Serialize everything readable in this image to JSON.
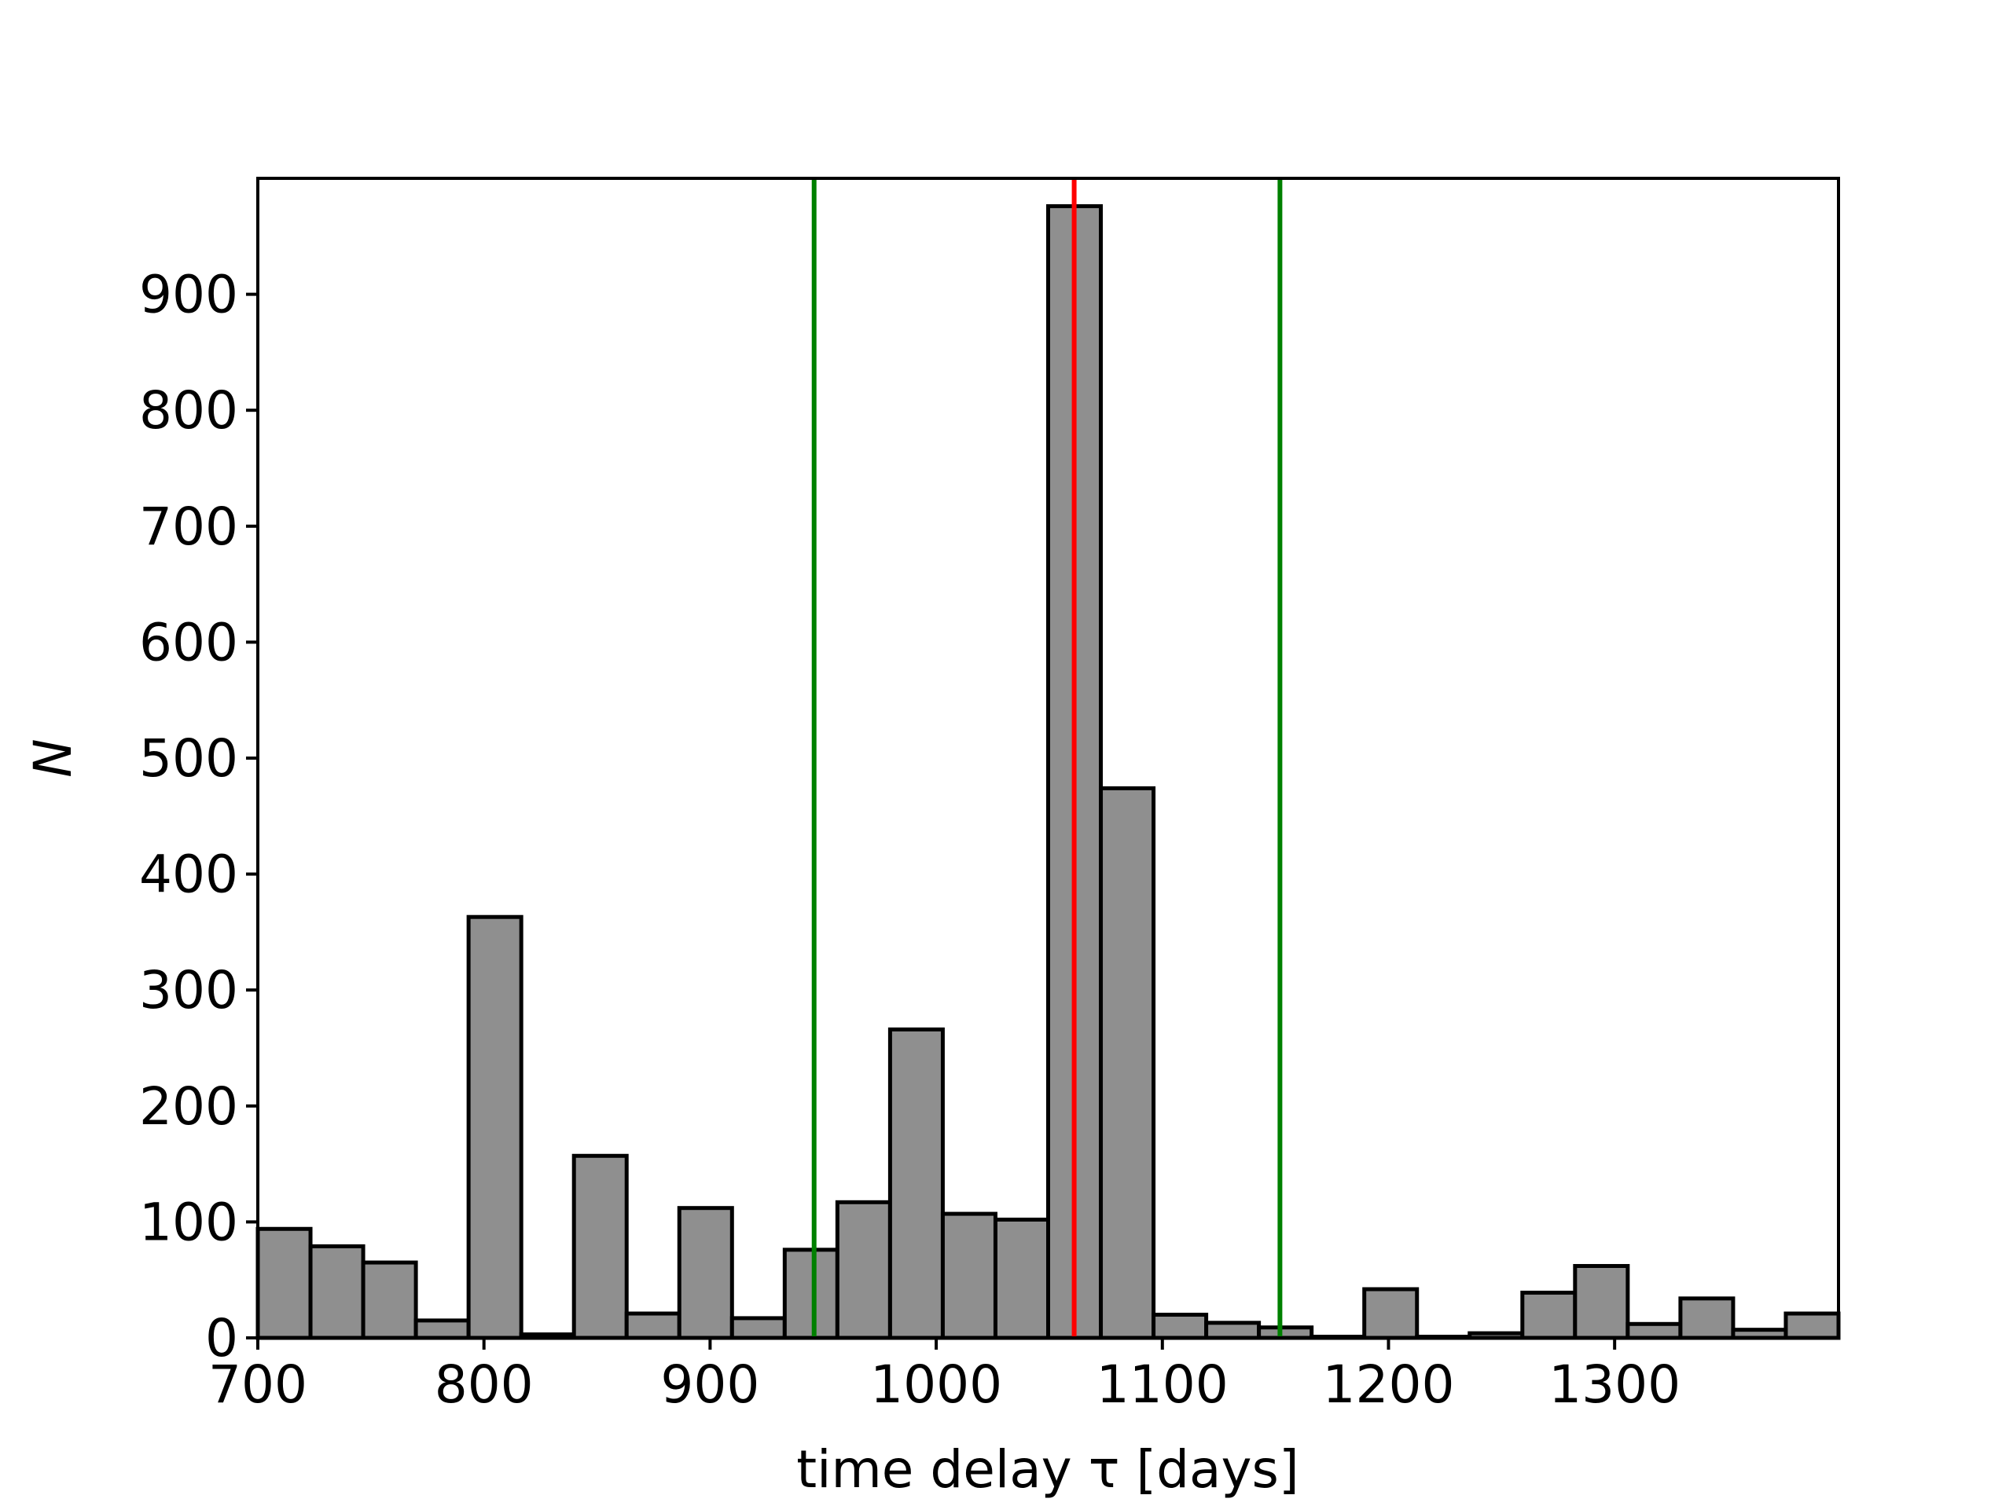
{
  "chart_data": {
    "type": "histogram",
    "xlabel": "time delay  τ [days]",
    "ylabel": "N",
    "bins": [
      700,
      723.3,
      746.6,
      769.9,
      793.2,
      816.5,
      839.8,
      863.1,
      886.4,
      909.7,
      933,
      956.3,
      979.6,
      1002.9,
      1026.2,
      1049.5,
      1072.8,
      1096.1,
      1119.4,
      1142.7,
      1166,
      1189.3,
      1212.6,
      1235.9,
      1259.2,
      1282.5,
      1305.8,
      1329.1,
      1352.4,
      1375.7,
      1399
    ],
    "values": [
      94,
      79,
      65,
      15,
      363,
      3,
      157,
      21,
      112,
      17,
      76,
      117,
      266,
      107,
      102,
      976,
      474,
      20,
      13,
      9,
      1,
      42,
      1,
      4,
      39,
      62,
      12,
      34,
      7,
      21
    ],
    "color": "#8f8f8f",
    "edgecolor": "#000000",
    "vlines": [
      {
        "x": 946,
        "color": "#008000"
      },
      {
        "x": 1061,
        "color": "#ff0000"
      },
      {
        "x": 1152,
        "color": "#008000"
      }
    ],
    "xlim": [
      700,
      1399
    ],
    "ylim": [
      0,
      1000
    ],
    "xticks": [
      700,
      800,
      900,
      1000,
      1100,
      1200,
      1300
    ],
    "yticks": [
      0,
      100,
      200,
      300,
      400,
      500,
      600,
      700,
      800,
      900
    ]
  }
}
